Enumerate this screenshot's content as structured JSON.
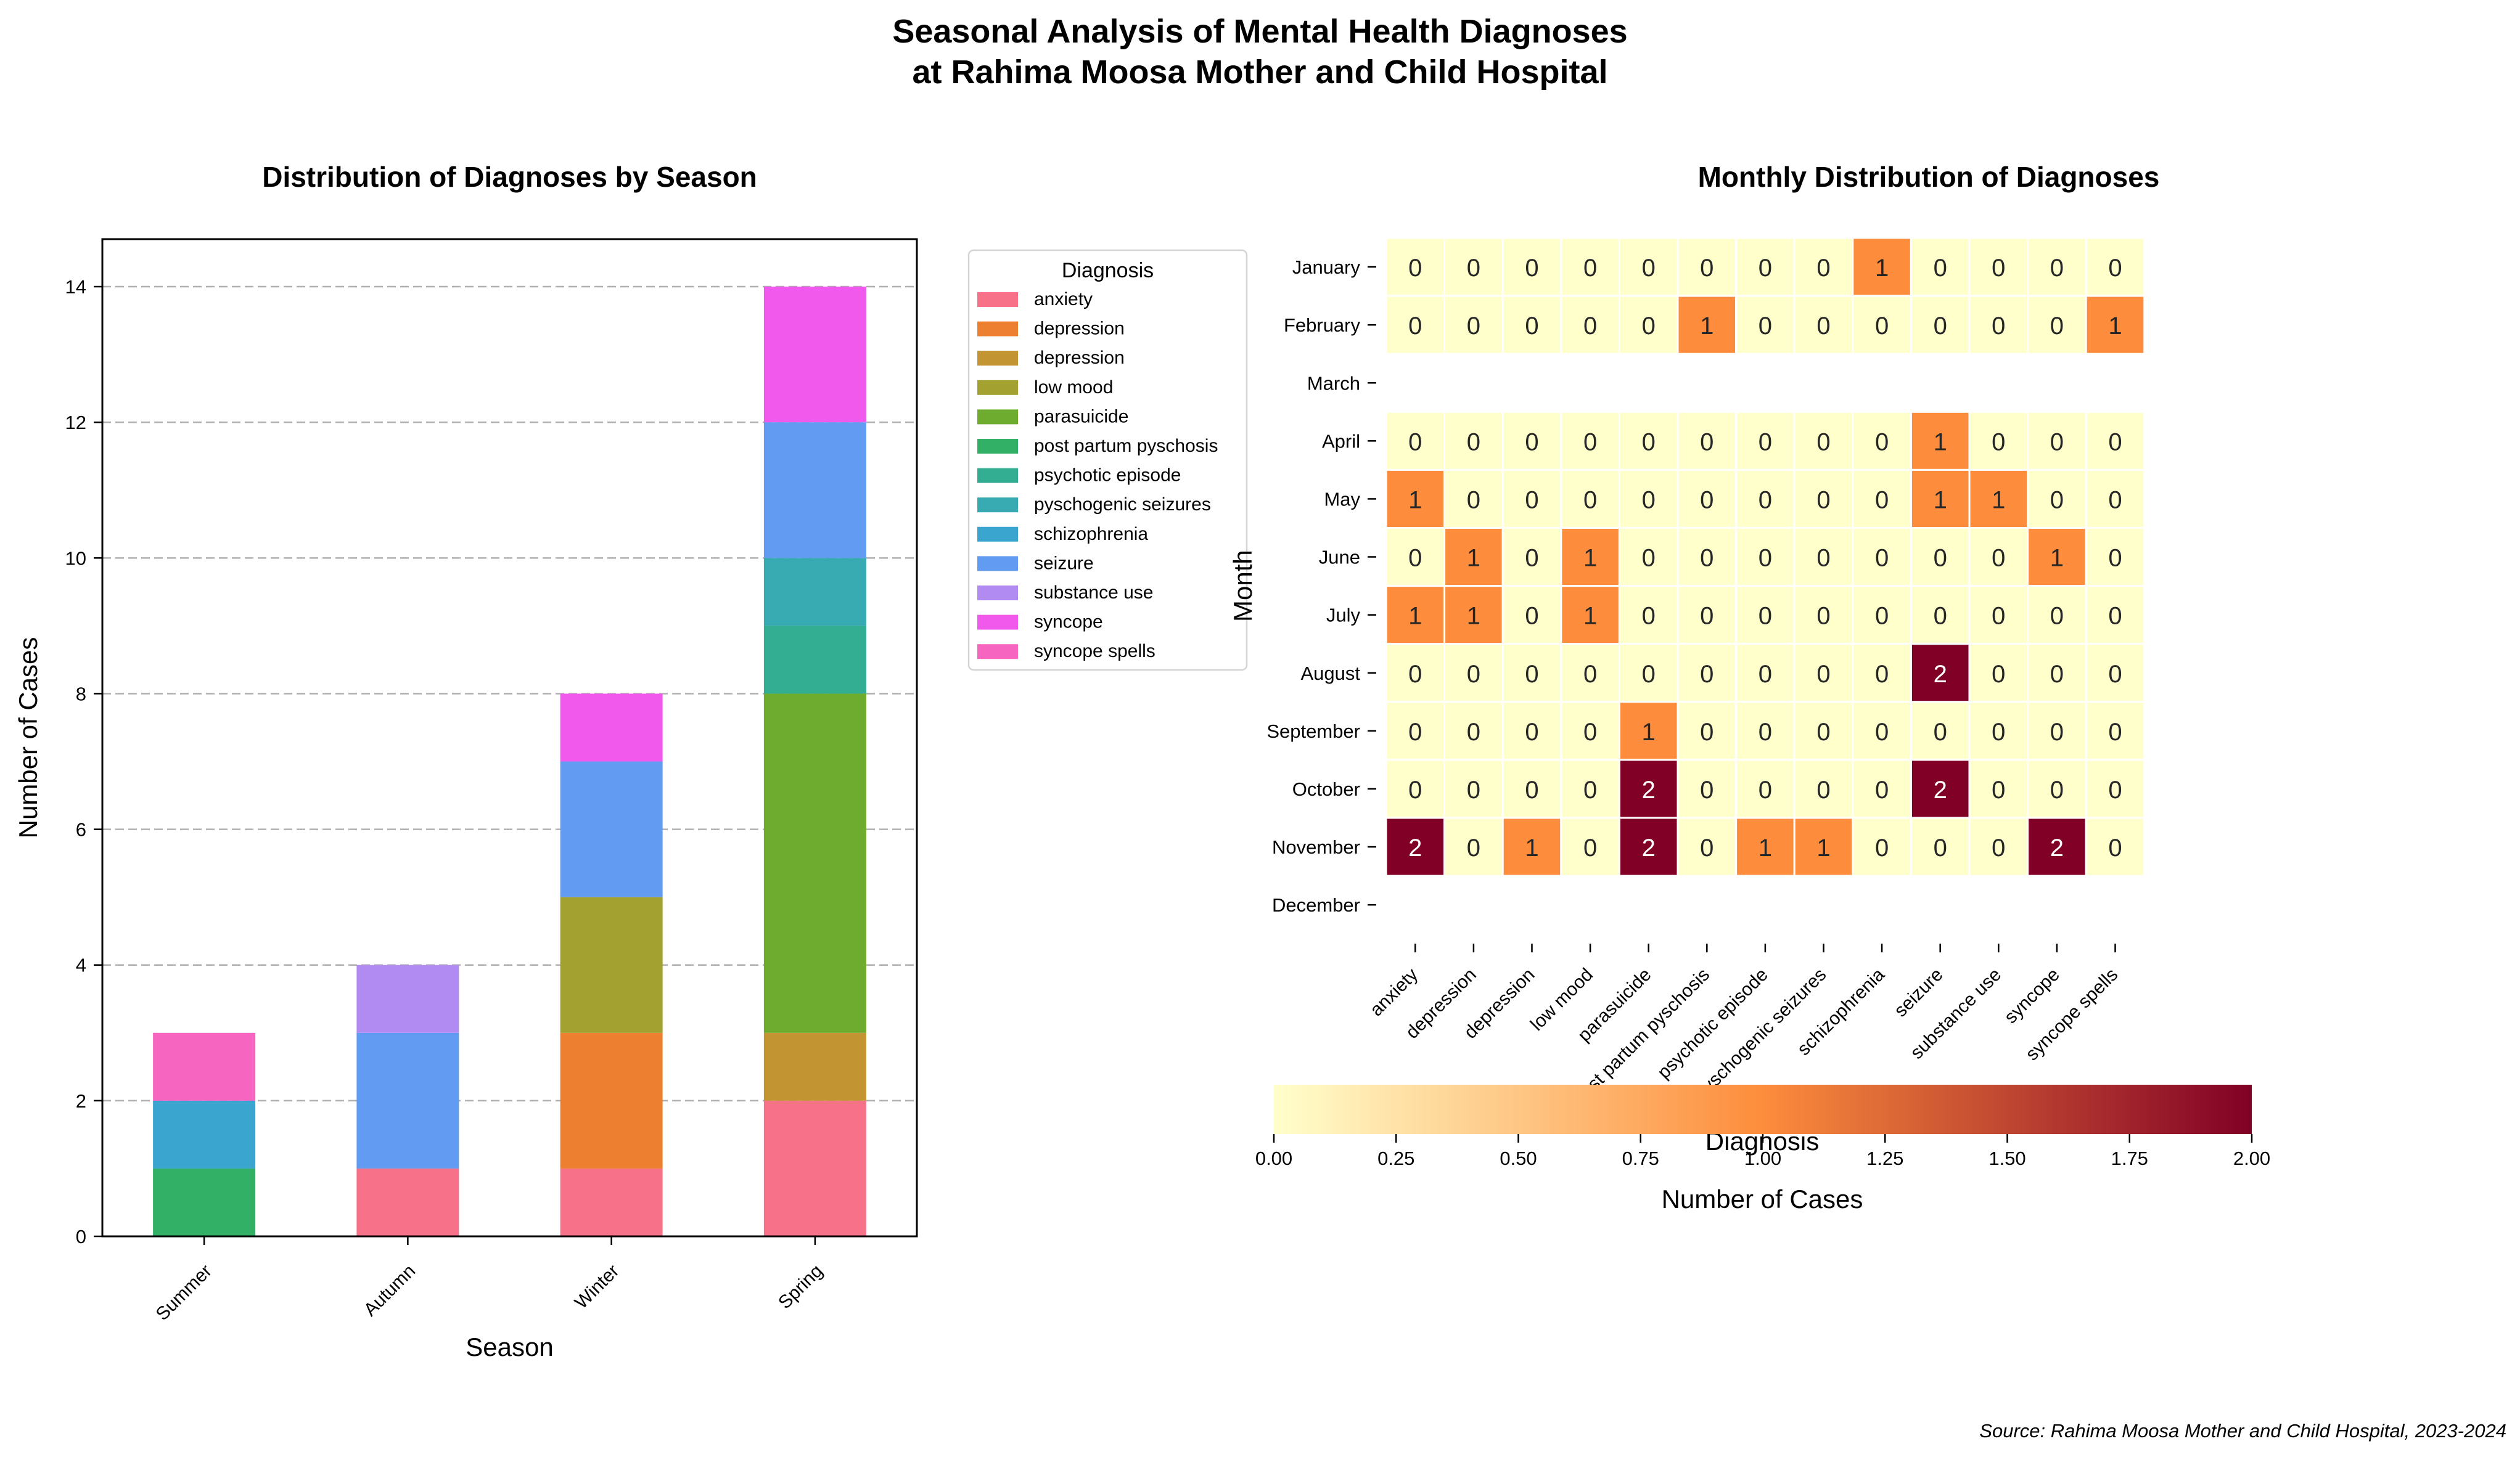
{
  "figure": {
    "title_line1": "Seasonal Analysis of Mental Health Diagnoses",
    "title_line2": "at Rahima Moosa Mother and Child Hospital",
    "source": "Source: Rahima Moosa Mother and Child Hospital, 2023-2024"
  },
  "chart_data": [
    {
      "type": "bar",
      "stacked": true,
      "title": "Distribution of Diagnoses by Season",
      "xlabel": "Season",
      "ylabel": "Number of Cases",
      "categories": [
        "Summer",
        "Autumn",
        "Winter",
        "Spring"
      ],
      "ylim": [
        0,
        14.7
      ],
      "yticks": [
        0,
        2,
        4,
        6,
        8,
        10,
        12,
        14
      ],
      "grid": "y dashed",
      "legend": {
        "title": "Diagnosis",
        "placement": "outside-right"
      },
      "series": [
        {
          "name": "anxiety",
          "color": "#f77189",
          "values": [
            0,
            1,
            1,
            2
          ]
        },
        {
          "name": "depression",
          "color": "#ed8030",
          "values": [
            0,
            0,
            2,
            0
          ]
        },
        {
          "name": "depression",
          "color": "#c39532",
          "values": [
            0,
            0,
            0,
            1
          ]
        },
        {
          "name": "low mood",
          "color": "#a3a12f",
          "values": [
            0,
            0,
            2,
            0
          ]
        },
        {
          "name": "parasuicide",
          "color": "#6eac2f",
          "values": [
            0,
            0,
            0,
            5
          ]
        },
        {
          "name": "post partum pyschosis",
          "color": "#32b166",
          "values": [
            1,
            0,
            0,
            0
          ]
        },
        {
          "name": "psychotic episode",
          "color": "#34ae93",
          "values": [
            0,
            0,
            0,
            1
          ]
        },
        {
          "name": "pyschogenic seizures",
          "color": "#37abb1",
          "values": [
            0,
            0,
            0,
            1
          ]
        },
        {
          "name": "schizophrenia",
          "color": "#3aa6cf",
          "values": [
            1,
            0,
            0,
            0
          ]
        },
        {
          "name": "seizure",
          "color": "#629cf2",
          "values": [
            0,
            2,
            2,
            2
          ]
        },
        {
          "name": "substance use",
          "color": "#b28bf2",
          "values": [
            0,
            1,
            0,
            0
          ]
        },
        {
          "name": "syncope",
          "color": "#f159ed",
          "values": [
            0,
            0,
            1,
            2
          ]
        },
        {
          "name": "syncope spells",
          "color": "#f665c0",
          "values": [
            1,
            0,
            0,
            0
          ]
        }
      ]
    },
    {
      "type": "heatmap",
      "title": "Monthly Distribution of Diagnoses",
      "xlabel": "Diagnosis",
      "ylabel": "Month",
      "x": [
        "anxiety",
        "depression",
        "depression",
        "low mood",
        "parasuicide",
        "post partum pyschosis",
        "psychotic episode",
        "pyschogenic seizures",
        "schizophrenia",
        "seizure",
        "substance use",
        "syncope",
        "syncope spells"
      ],
      "y": [
        "January",
        "February",
        "March",
        "April",
        "May",
        "June",
        "July",
        "August",
        "September",
        "October",
        "November",
        "December"
      ],
      "values": [
        [
          0,
          0,
          0,
          0,
          0,
          0,
          0,
          0,
          1,
          0,
          0,
          0,
          0
        ],
        [
          0,
          0,
          0,
          0,
          0,
          1,
          0,
          0,
          0,
          0,
          0,
          0,
          1
        ],
        null,
        [
          0,
          0,
          0,
          0,
          0,
          0,
          0,
          0,
          0,
          1,
          0,
          0,
          0
        ],
        [
          1,
          0,
          0,
          0,
          0,
          0,
          0,
          0,
          0,
          1,
          1,
          0,
          0
        ],
        [
          0,
          1,
          0,
          1,
          0,
          0,
          0,
          0,
          0,
          0,
          0,
          1,
          0
        ],
        [
          1,
          1,
          0,
          1,
          0,
          0,
          0,
          0,
          0,
          0,
          0,
          0,
          0
        ],
        [
          0,
          0,
          0,
          0,
          0,
          0,
          0,
          0,
          0,
          2,
          0,
          0,
          0
        ],
        [
          0,
          0,
          0,
          0,
          1,
          0,
          0,
          0,
          0,
          0,
          0,
          0,
          0
        ],
        [
          0,
          0,
          0,
          0,
          2,
          0,
          0,
          0,
          0,
          2,
          0,
          0,
          0
        ],
        [
          2,
          0,
          1,
          0,
          2,
          0,
          1,
          1,
          0,
          0,
          0,
          2,
          0
        ],
        null
      ],
      "colorbar": {
        "label": "Number of Cases",
        "colormap": "YlOrRd",
        "range": [
          0,
          2
        ],
        "ticks": [
          "0.00",
          "0.25",
          "0.50",
          "0.75",
          "1.00",
          "1.25",
          "1.50",
          "1.75",
          "2.00"
        ],
        "colors": [
          "#ffffcc",
          "#fd8d3c",
          "#800026"
        ]
      }
    }
  ]
}
